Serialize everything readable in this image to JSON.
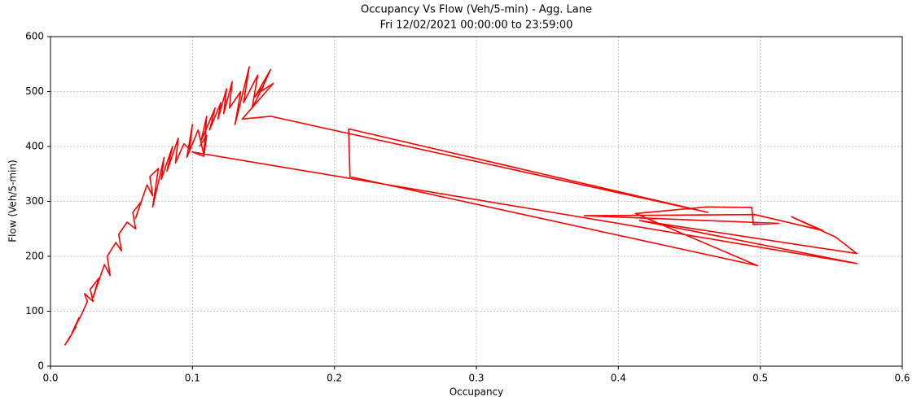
{
  "chart_data": {
    "type": "line",
    "title": "Occupancy Vs Flow (Veh/5-min) - Agg. Lane",
    "subtitle": "Fri 12/02/2021 00:00:00 to  23:59:00",
    "x_label": "Occupancy",
    "y_label": "Flow (Veh/5-min)",
    "xlim": [
      0,
      0.6
    ],
    "ylim": [
      0,
      600
    ],
    "xticks": [
      {
        "value": 0,
        "label": "0.0"
      },
      0.1,
      0.2,
      0.3,
      0.4,
      0.5,
      0.6
    ],
    "yticks": [
      0,
      100,
      200,
      300,
      400,
      500,
      600
    ],
    "grid": true,
    "series": [
      {
        "color": "#ff0000",
        "x": [
          0.01,
          0.014,
          0.012,
          0.018,
          0.015,
          0.02,
          0.016,
          0.022,
          0.026,
          0.024,
          0.03,
          0.028,
          0.034,
          0.03,
          0.038,
          0.042,
          0.04,
          0.046,
          0.05,
          0.048,
          0.054,
          0.06,
          0.058,
          0.064,
          0.06,
          0.068,
          0.072,
          0.07,
          0.076,
          0.072,
          0.08,
          0.078,
          0.086,
          0.082,
          0.09,
          0.088,
          0.094,
          0.098,
          0.1,
          0.096,
          0.104,
          0.108,
          0.11,
          0.106,
          0.116,
          0.112,
          0.12,
          0.118,
          0.124,
          0.122,
          0.128,
          0.126,
          0.134,
          0.13,
          0.14,
          0.136,
          0.146,
          0.142,
          0.15,
          0.144,
          0.155,
          0.148,
          0.157,
          0.135,
          0.155,
          0.463,
          0.21,
          0.211,
          0.498,
          0.412,
          0.462,
          0.494,
          0.495,
          0.513,
          0.376,
          0.496,
          0.544,
          0.522,
          0.553,
          0.568,
          0.415,
          0.568,
          0.1,
          0.108,
          0.11,
          0.105
        ],
        "values": [
          38,
          55,
          45,
          72,
          60,
          88,
          65,
          95,
          118,
          132,
          118,
          140,
          160,
          125,
          185,
          165,
          200,
          225,
          210,
          240,
          262,
          250,
          280,
          300,
          270,
          330,
          310,
          345,
          360,
          290,
          380,
          340,
          400,
          355,
          415,
          370,
          405,
          395,
          440,
          380,
          430,
          385,
          455,
          410,
          470,
          430,
          480,
          450,
          505,
          460,
          518,
          470,
          500,
          440,
          545,
          480,
          530,
          470,
          510,
          490,
          540,
          500,
          515,
          450,
          455,
          280,
          432,
          345,
          183,
          278,
          290,
          289,
          258,
          260,
          274,
          276,
          247,
          272,
          235,
          205,
          265,
          187,
          390,
          382,
          420,
          400
        ]
      }
    ]
  }
}
